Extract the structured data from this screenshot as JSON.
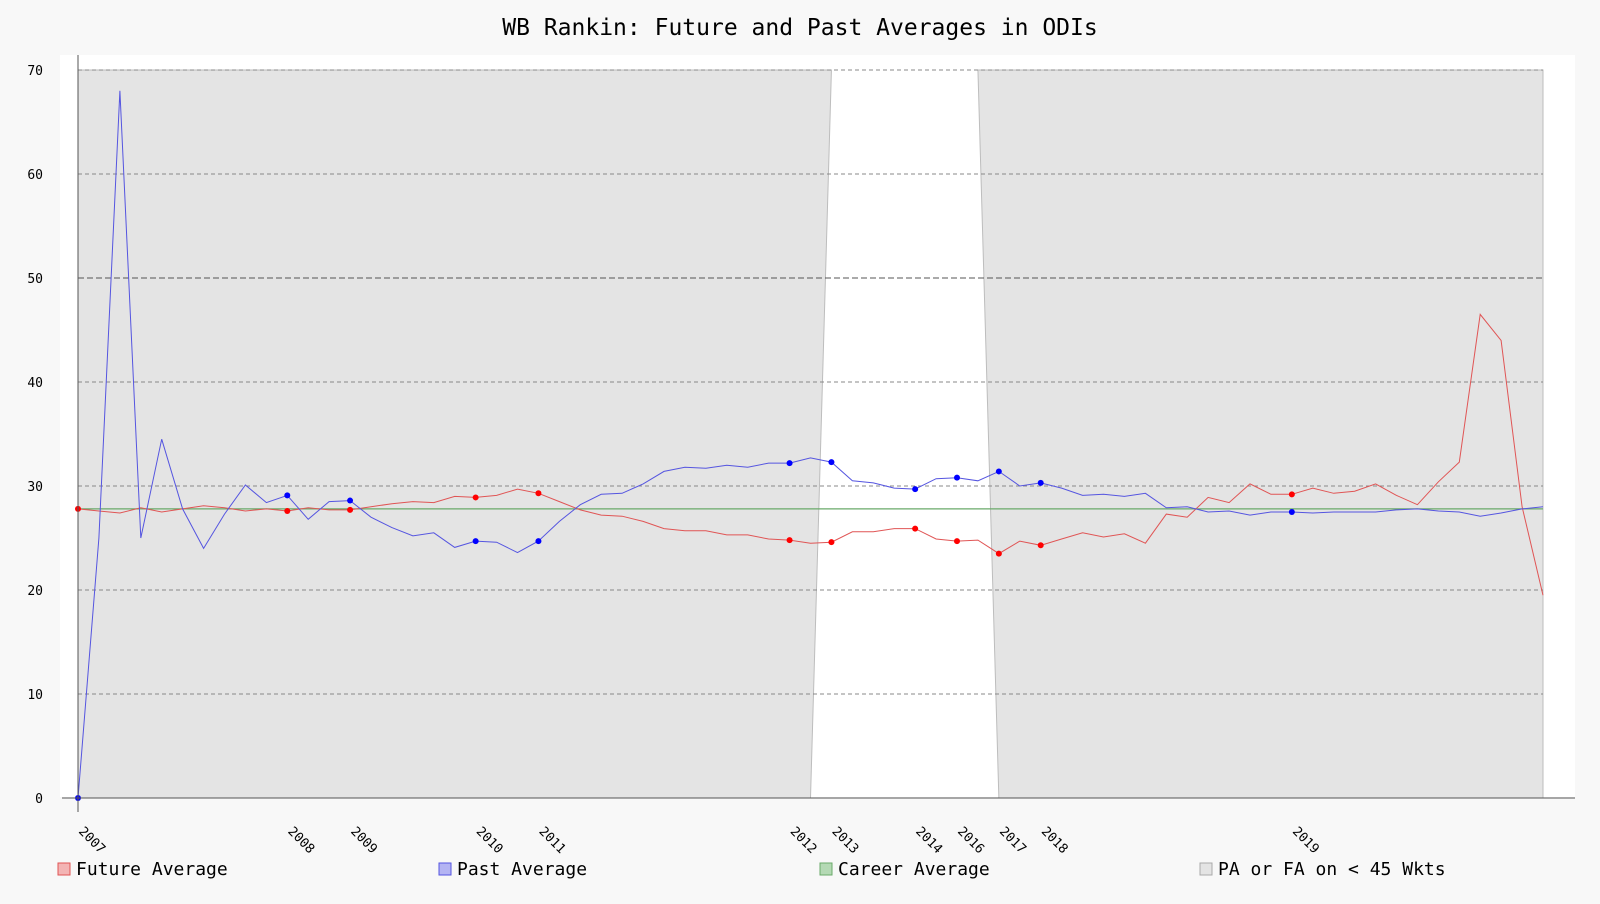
{
  "chart_data": {
    "type": "line",
    "title": "WB Rankin: Future and Past Averages in ODIs",
    "xlabel": "",
    "ylabel": "",
    "ylim": [
      0,
      70
    ],
    "yticks": [
      0,
      10,
      20,
      30,
      40,
      50,
      60,
      70
    ],
    "grid": true,
    "legend_position": "bottom",
    "colors": {
      "future": "#e05555",
      "past": "#5555e0",
      "career": "#6aaa6a",
      "shade": "#e4e4e4",
      "future_marker": "#ff0000",
      "past_marker": "#0000ff"
    },
    "year_labels": [
      {
        "label": "2007",
        "index": 0
      },
      {
        "label": "2008",
        "index": 10
      },
      {
        "label": "2009",
        "index": 13
      },
      {
        "label": "2010",
        "index": 19
      },
      {
        "label": "2011",
        "index": 22
      },
      {
        "label": "2012",
        "index": 34
      },
      {
        "label": "2013",
        "index": 36
      },
      {
        "label": "2014",
        "index": 40
      },
      {
        "label": "2016",
        "index": 42
      },
      {
        "label": "2017",
        "index": 44
      },
      {
        "label": "2018",
        "index": 46
      },
      {
        "label": "2019",
        "index": 58
      }
    ],
    "series": [
      {
        "name": "Future Average",
        "values": [
          27.8,
          27.6,
          27.4,
          27.9,
          27.5,
          27.8,
          28.1,
          27.9,
          27.6,
          27.8,
          27.6,
          27.9,
          27.7,
          27.7,
          28.0,
          28.3,
          28.5,
          28.4,
          29.0,
          28.9,
          29.1,
          29.7,
          29.3,
          28.5,
          27.7,
          27.2,
          27.1,
          26.6,
          25.9,
          25.7,
          25.7,
          25.3,
          25.3,
          24.9,
          24.8,
          24.5,
          24.6,
          25.6,
          25.6,
          25.9,
          25.9,
          24.9,
          24.7,
          24.8,
          23.5,
          24.7,
          24.3,
          24.9,
          25.5,
          25.1,
          25.4,
          24.5,
          27.3,
          27.0,
          28.9,
          28.4,
          30.2,
          29.2,
          29.2,
          29.8,
          29.3,
          29.5,
          30.2,
          29.1,
          28.2,
          30.4,
          32.3,
          46.5,
          44.0,
          28.0,
          19.5
        ],
        "markers": [
          0,
          10,
          13,
          19,
          22,
          34,
          36,
          40,
          42,
          44,
          46,
          58
        ]
      },
      {
        "name": "Past Average",
        "values": [
          0,
          25.0,
          68.0,
          25.0,
          34.5,
          27.8,
          24.0,
          27.3,
          30.1,
          28.4,
          29.1,
          26.8,
          28.5,
          28.6,
          27.0,
          26.0,
          25.2,
          25.5,
          24.1,
          24.7,
          24.6,
          23.6,
          24.7,
          26.6,
          28.2,
          29.2,
          29.3,
          30.2,
          31.4,
          31.8,
          31.7,
          32.0,
          31.8,
          32.2,
          32.2,
          32.7,
          32.3,
          30.5,
          30.3,
          29.8,
          29.7,
          30.7,
          30.8,
          30.5,
          31.4,
          30.0,
          30.3,
          29.8,
          29.1,
          29.2,
          29.0,
          29.3,
          27.9,
          28.0,
          27.5,
          27.6,
          27.2,
          27.5,
          27.5,
          27.4,
          27.5,
          27.5,
          27.5,
          27.7,
          27.8,
          27.6,
          27.5,
          27.1,
          27.4,
          27.8,
          28.0
        ],
        "markers": [
          0,
          10,
          13,
          19,
          22,
          34,
          36,
          40,
          42,
          44,
          46,
          58
        ]
      },
      {
        "name": "Career Average",
        "value": 27.8
      },
      {
        "name": "PA or FA on < 45 Wkts",
        "unshaded_range": [
          36,
          43
        ]
      }
    ]
  }
}
